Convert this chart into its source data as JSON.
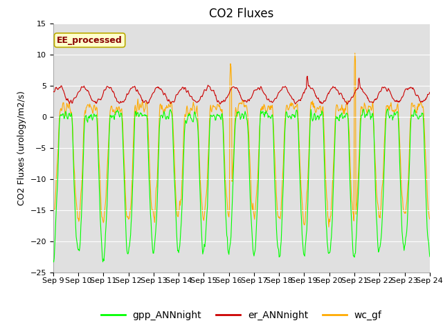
{
  "title": "CO2 Fluxes",
  "ylabel": "CO2 Fluxes (urology/m2/s)",
  "ylim": [
    -25,
    15
  ],
  "yticks": [
    -25,
    -20,
    -15,
    -10,
    -5,
    0,
    5,
    10,
    15
  ],
  "annotation_text": "EE_processed",
  "annotation_color": "#880000",
  "annotation_bg": "#ffffcc",
  "annotation_border": "#bbaa00",
  "gpp_color": "#00ff00",
  "er_color": "#cc0000",
  "wc_color": "#ffaa00",
  "legend_labels": [
    "gpp_ANNnight",
    "er_ANNnight",
    "wc_gf"
  ],
  "bg_color": "#e0e0e0",
  "grid_color": "#ffffff",
  "title_fontsize": 12,
  "axis_fontsize": 9,
  "tick_fontsize": 8,
  "legend_fontsize": 10,
  "lw": 0.8
}
